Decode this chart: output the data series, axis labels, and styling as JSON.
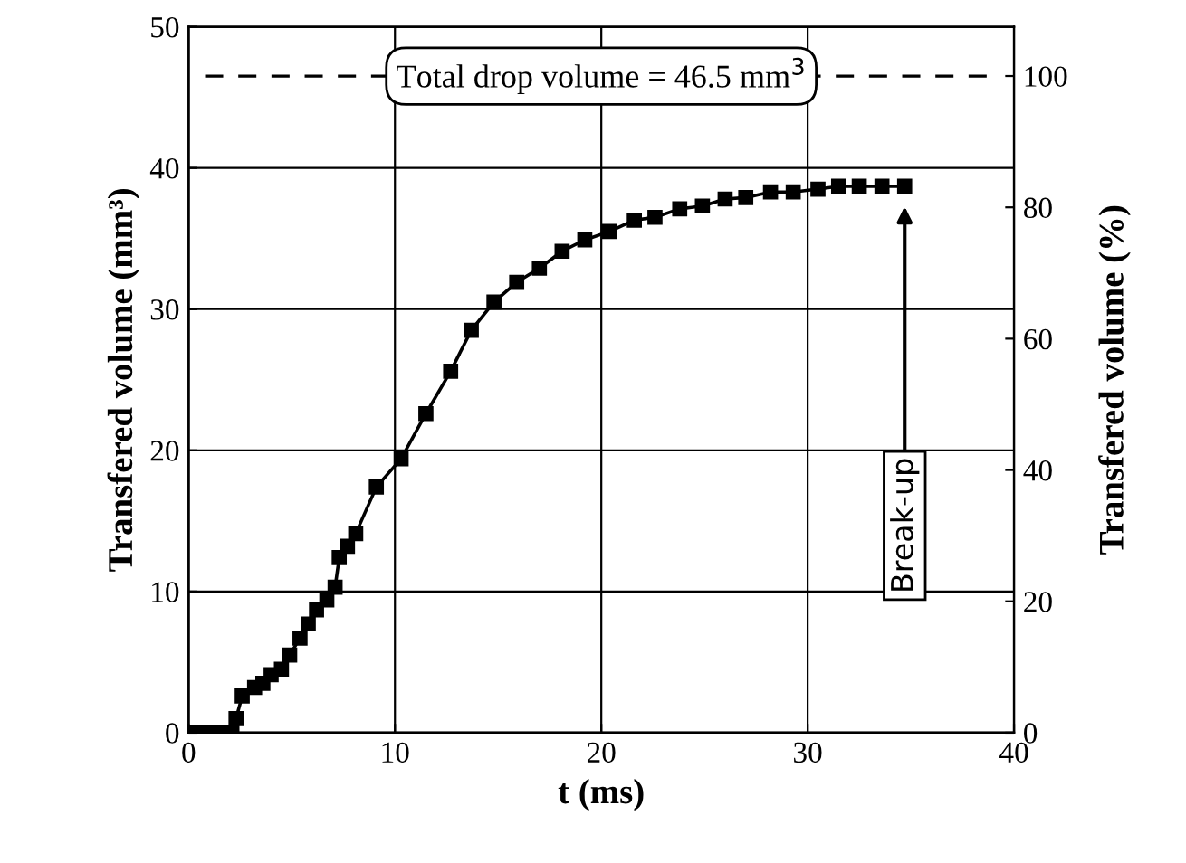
{
  "chart_data": {
    "type": "line",
    "xlabel": "t (ms)",
    "ylabel": "Transfered volume (mm³)",
    "y2label": "Transfered volume (%)",
    "xlim": [
      0,
      40
    ],
    "xticks": [
      0,
      10,
      20,
      30,
      40
    ],
    "ylim": [
      0,
      50
    ],
    "yticks": [
      0,
      10,
      20,
      30,
      40,
      50
    ],
    "y2lim": [
      0,
      107.5
    ],
    "y2ticks": [
      0,
      20,
      40,
      60,
      80,
      100
    ],
    "grid": true,
    "marker": "square",
    "line_style": "solid",
    "series": [
      {
        "color": "#000000",
        "x": [
          0,
          0.3,
          0.6,
          0.9,
          1.2,
          1.5,
          1.8,
          2.1,
          2.3,
          2.6,
          3.2,
          3.6,
          4.0,
          4.5,
          4.9,
          5.4,
          5.8,
          6.2,
          6.7,
          7.1,
          7.3,
          7.7,
          8.1,
          9.1,
          10.3,
          11.5,
          12.7,
          13.7,
          14.8,
          15.9,
          17.0,
          18.1,
          19.2,
          20.4,
          21.6,
          22.6,
          23.8,
          24.9,
          26.0,
          27.0,
          28.2,
          29.3,
          30.5,
          31.5,
          32.5,
          33.6,
          34.7
        ],
        "values": [
          0,
          0,
          0,
          0,
          0,
          0,
          0,
          0,
          1.0,
          2.6,
          3.2,
          3.5,
          4.1,
          4.5,
          5.5,
          6.7,
          7.7,
          8.7,
          9.4,
          10.3,
          12.4,
          13.2,
          14.1,
          17.4,
          19.4,
          22.6,
          25.6,
          28.5,
          30.5,
          31.9,
          32.9,
          34.1,
          34.9,
          35.5,
          36.3,
          36.5,
          37.1,
          37.3,
          37.8,
          37.9,
          38.3,
          38.3,
          38.5,
          38.7,
          38.7,
          38.7,
          38.7
        ]
      }
    ],
    "ref_lines": [
      {
        "axis": "y",
        "value": 46.5,
        "label": "Total drop volume = 46.5 mm$^{3}$",
        "line_style": "dashed",
        "color": "#000000"
      }
    ],
    "annotations": [
      "Break-up"
    ]
  }
}
